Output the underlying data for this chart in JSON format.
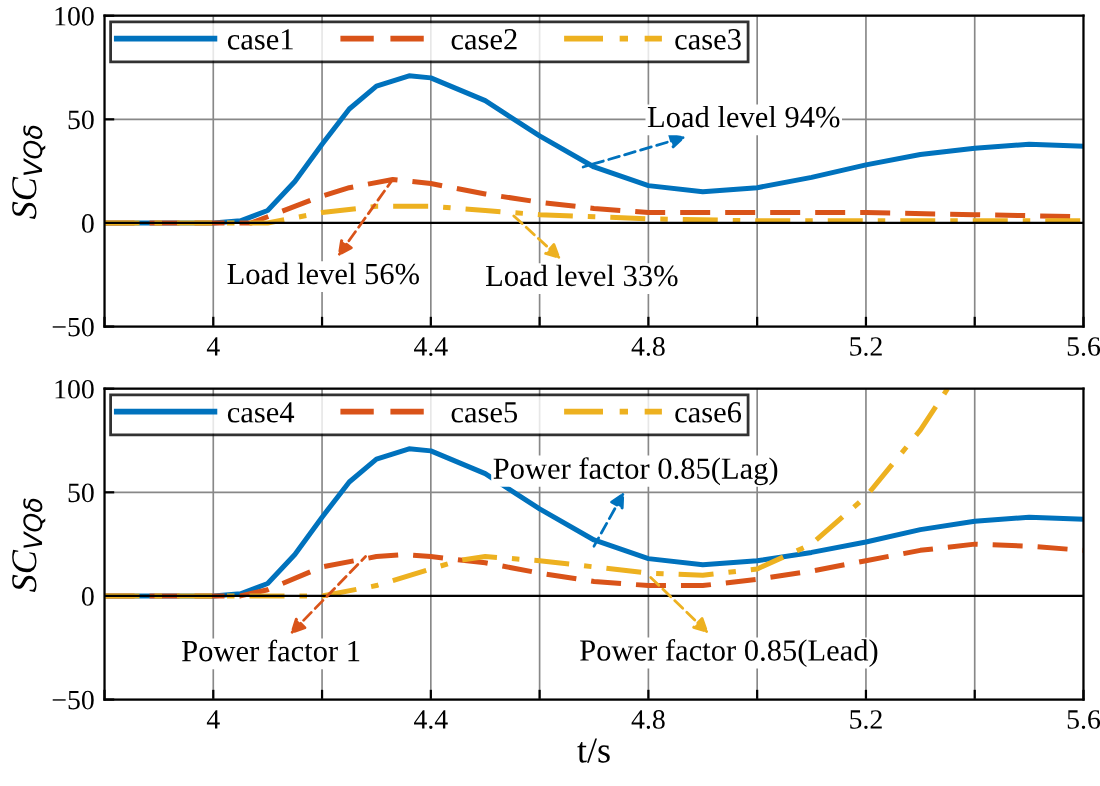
{
  "chart_data": [
    {
      "type": "line",
      "ylabel": "SC$_{VQδ}$",
      "xlim": [
        3.8,
        5.6
      ],
      "ylim": [
        -50,
        100
      ],
      "xticks": [
        {
          "value": 3.8,
          "label": null
        },
        4,
        {
          "value": 4.2,
          "label": null
        },
        4.4,
        {
          "value": 4.6,
          "label": null
        },
        4.8,
        {
          "value": 5.0,
          "label": null
        },
        5.2,
        {
          "value": 5.4,
          "label": null
        },
        5.6
      ],
      "yticks": [
        {
          "value": -50,
          "label": "−50"
        },
        0,
        50,
        100
      ],
      "grid": true,
      "legend": "top left",
      "series": [
        {
          "name": "case1",
          "color": "#0072bd",
          "line_style": "solid",
          "x": [
            3.8,
            4.0,
            4.05,
            4.1,
            4.15,
            4.2,
            4.25,
            4.3,
            4.36,
            4.4,
            4.5,
            4.6,
            4.7,
            4.8,
            4.9,
            5.0,
            5.1,
            5.2,
            5.3,
            5.4,
            5.5,
            5.6
          ],
          "values": [
            0,
            0,
            1,
            6,
            20,
            38,
            55,
            66,
            71,
            70,
            59,
            42,
            27,
            18,
            15,
            17,
            22,
            28,
            33,
            36,
            38,
            37
          ]
        },
        {
          "name": "case2",
          "color": "#d95319",
          "line_style": "dashed",
          "x": [
            3.8,
            4.0,
            4.07,
            4.1,
            4.2,
            4.25,
            4.33,
            4.4,
            4.5,
            4.6,
            4.7,
            4.8,
            5.0,
            5.2,
            5.4,
            5.6
          ],
          "values": [
            0,
            0,
            0,
            3,
            13,
            17,
            21,
            19,
            14,
            10,
            7,
            5,
            5,
            5,
            4,
            3
          ]
        },
        {
          "name": "case3",
          "color": "#edb120",
          "line_style": "dashdot",
          "x": [
            3.8,
            4.0,
            4.1,
            4.2,
            4.3,
            4.4,
            4.5,
            4.6,
            4.8,
            5.0,
            5.2,
            5.6
          ],
          "values": [
            0,
            0,
            0,
            5,
            8,
            8,
            6,
            4,
            2,
            1,
            1,
            1
          ]
        }
      ],
      "annotations": [
        {
          "text": "Load level 94%",
          "x": 4.68,
          "y": 27
        },
        {
          "text": "Load level 56%",
          "x": 4.33,
          "y": 21
        },
        {
          "text": "Load level 33%",
          "x": 4.55,
          "y": 4
        }
      ]
    },
    {
      "type": "line",
      "ylabel": "SC$_{VQδ}$",
      "xlabel": "t/s",
      "xlim": [
        3.8,
        5.6
      ],
      "ylim": [
        -50,
        100
      ],
      "xticks": [
        {
          "value": 3.8,
          "label": null
        },
        4,
        {
          "value": 4.2,
          "label": null
        },
        4.4,
        {
          "value": 4.6,
          "label": null
        },
        4.8,
        {
          "value": 5.0,
          "label": null
        },
        5.2,
        {
          "value": 5.4,
          "label": null
        },
        5.6
      ],
      "yticks": [
        {
          "value": -50,
          "label": "−50"
        },
        0,
        50,
        100
      ],
      "grid": true,
      "legend": "top left",
      "series": [
        {
          "name": "case4",
          "color": "#0072bd",
          "line_style": "solid",
          "x": [
            3.8,
            4.0,
            4.05,
            4.1,
            4.15,
            4.2,
            4.25,
            4.3,
            4.36,
            4.4,
            4.5,
            4.6,
            4.7,
            4.8,
            4.9,
            5.0,
            5.1,
            5.2,
            5.3,
            5.4,
            5.5,
            5.6
          ],
          "values": [
            0,
            0,
            1,
            6,
            20,
            38,
            55,
            66,
            71,
            70,
            59,
            42,
            27,
            18,
            15,
            17,
            21,
            26,
            32,
            36,
            38,
            37
          ]
        },
        {
          "name": "case5",
          "color": "#d95319",
          "line_style": "dashed",
          "x": [
            3.8,
            4.0,
            4.05,
            4.1,
            4.2,
            4.3,
            4.35,
            4.4,
            4.5,
            4.6,
            4.7,
            4.8,
            4.9,
            5.0,
            5.1,
            5.2,
            5.3,
            5.4,
            5.5,
            5.6
          ],
          "values": [
            0,
            0,
            0,
            3,
            14,
            19,
            20,
            19,
            16,
            11,
            7,
            5,
            5,
            8,
            12,
            17,
            22,
            25,
            24,
            22
          ]
        },
        {
          "name": "case6",
          "color": "#edb120",
          "line_style": "dashdot",
          "x": [
            3.8,
            4.0,
            4.2,
            4.3,
            4.4,
            4.45,
            4.5,
            4.6,
            4.7,
            4.8,
            4.9,
            5.0,
            5.1,
            5.2,
            5.3,
            5.35
          ],
          "values": [
            0,
            0,
            0,
            5,
            13,
            17,
            19,
            17,
            14,
            11,
            10,
            13,
            25,
            48,
            80,
            100
          ]
        }
      ],
      "annotations": [
        {
          "text": "Power factor 0.85(Lag)",
          "x": 4.7,
          "y": 24
        },
        {
          "text": "Power factor 1",
          "x": 4.28,
          "y": 19
        },
        {
          "text": "Power factor 0.85(Lead)",
          "x": 4.8,
          "y": 10
        }
      ]
    }
  ]
}
